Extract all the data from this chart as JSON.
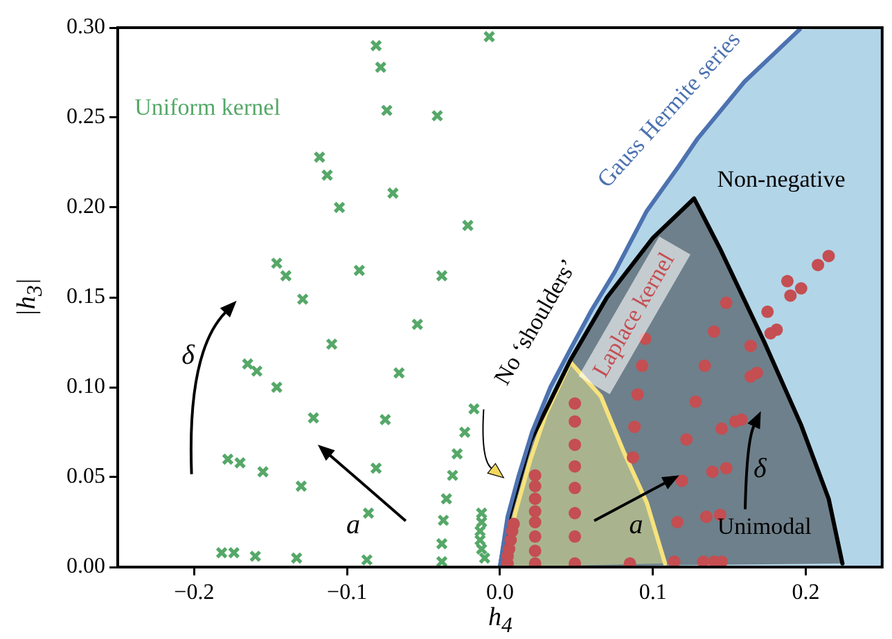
{
  "chart_data": {
    "type": "scatter",
    "xlabel": "h$_{4}$",
    "ylabel": "|h$_{3}$|",
    "xlim": [
      -0.25,
      0.25
    ],
    "ylim": [
      0,
      0.3
    ],
    "legend": false,
    "xticks": [
      {
        "value": -0.2,
        "label": "−0.2"
      },
      {
        "value": -0.1,
        "label": "−0.1"
      },
      {
        "value": 0,
        "label": "0.0"
      },
      {
        "value": 0.1,
        "label": "0.1"
      },
      {
        "value": 0.2,
        "label": "0.2"
      }
    ],
    "yticks": [
      {
        "value": 0,
        "label": "0.00"
      },
      {
        "value": 0.05,
        "label": "0.05"
      },
      {
        "value": 0.1,
        "label": "0.10"
      },
      {
        "value": 0.15,
        "label": "0.15"
      },
      {
        "value": 0.2,
        "label": "0.20"
      },
      {
        "value": 0.25,
        "label": "0.25"
      },
      {
        "value": 0.3,
        "label": "0.30"
      }
    ],
    "annotations": [
      "No ‘shoulders’",
      "a",
      "δ",
      "a",
      "δ",
      "Unimodal"
    ],
    "series": [
      {
        "name": "Gauss Hermite series",
        "type": "line",
        "marker": "none",
        "color": "#4c72b0",
        "x": [
          0,
          0.005,
          0.012,
          0.021,
          0.033,
          0.046,
          0.06,
          0.075,
          0.096,
          0.117,
          0.129,
          0.16,
          0.196
        ],
        "values": [
          0,
          0.028,
          0.05,
          0.075,
          0.1,
          0.121,
          0.143,
          0.164,
          0.198,
          0.223,
          0.238,
          0.27,
          0.299
        ]
      },
      {
        "name": "Non-negative",
        "type": "line",
        "marker": "none",
        "color": "#000000",
        "x": [
          0,
          0.005,
          0.02,
          0.046,
          0.07,
          0.1,
          0.127,
          0.144,
          0.173,
          0.197,
          0.215,
          0.224
        ],
        "values": [
          0,
          0.025,
          0.07,
          0.115,
          0.15,
          0.183,
          0.205,
          0.177,
          0.125,
          0.079,
          0.038,
          0.002
        ]
      },
      {
        "type": "line",
        "marker": "none",
        "color": "#f7e27c",
        "x": [
          0.002,
          0.01,
          0.02,
          0.03,
          0.046,
          0.066,
          0.081,
          0.096,
          0.108
        ],
        "values": [
          0,
          0.03,
          0.06,
          0.085,
          0.114,
          0.095,
          0.064,
          0.036,
          0.002
        ]
      },
      {
        "name": "Uniform kernel",
        "marker": "cross",
        "color": "#55a868",
        "x": [
          -0.081,
          -0.078,
          -0.074,
          -0.041,
          -0.007,
          -0.118,
          -0.113,
          -0.105,
          -0.07,
          -0.021,
          -0.146,
          -0.14,
          -0.129,
          -0.092,
          -0.038,
          -0.054,
          -0.11,
          -0.066,
          -0.165,
          -0.159,
          -0.146,
          -0.122,
          -0.075,
          -0.017,
          -0.023,
          -0.028,
          -0.031,
          -0.035,
          -0.037,
          -0.038,
          -0.038,
          -0.081,
          -0.178,
          -0.17,
          -0.155,
          -0.13,
          -0.086,
          -0.182,
          -0.174,
          -0.16,
          -0.133,
          -0.087,
          -0.012,
          -0.012,
          -0.013,
          -0.013,
          -0.012,
          -0.01
        ],
        "values": [
          0.29,
          0.278,
          0.254,
          0.251,
          0.295,
          0.228,
          0.218,
          0.2,
          0.208,
          0.19,
          0.169,
          0.162,
          0.149,
          0.165,
          0.162,
          0.135,
          0.124,
          0.108,
          0.113,
          0.109,
          0.1,
          0.083,
          0.082,
          0.088,
          0.075,
          0.063,
          0.051,
          0.038,
          0.026,
          0.013,
          0.003,
          0.055,
          0.06,
          0.058,
          0.053,
          0.045,
          0.03,
          0.008,
          0.008,
          0.006,
          0.005,
          0.004,
          0.03,
          0.025,
          0.02,
          0.015,
          0.01,
          0.005
        ]
      },
      {
        "name": "Laplace kernel",
        "marker": "circle",
        "color": "#c44e52",
        "x": [
          0.005,
          0.005,
          0.006,
          0.007,
          0.008,
          0.009,
          0.023,
          0.023,
          0.023,
          0.023,
          0.023,
          0.023,
          0.023,
          0.023,
          0.049,
          0.049,
          0.049,
          0.049,
          0.049,
          0.049,
          0.049,
          0.049,
          0.148,
          0.14,
          0.164,
          0.095,
          0.093,
          0.134,
          0.09,
          0.128,
          0.164,
          0.168,
          0.175,
          0.181,
          0.177,
          0.188,
          0.197,
          0.19,
          0.208,
          0.215,
          0.088,
          0.122,
          0.145,
          0.154,
          0.158,
          0.087,
          0.119,
          0.139,
          0.148,
          0.116,
          0.135,
          0.144,
          0.085,
          0.114,
          0.133,
          0.14,
          0.145
        ],
        "values": [
          0.002,
          0.006,
          0.01,
          0.015,
          0.02,
          0.024,
          0.051,
          0.045,
          0.038,
          0.031,
          0.025,
          0.017,
          0.009,
          0.002,
          0.091,
          0.081,
          0.068,
          0.056,
          0.044,
          0.03,
          0.017,
          0.002,
          0.147,
          0.131,
          0.123,
          0.127,
          0.112,
          0.112,
          0.096,
          0.092,
          0.106,
          0.108,
          0.142,
          0.132,
          0.13,
          0.159,
          0.155,
          0.151,
          0.168,
          0.173,
          0.078,
          0.071,
          0.077,
          0.081,
          0.082,
          0.061,
          0.048,
          0.053,
          0.055,
          0.025,
          0.028,
          0.029,
          0.002,
          0.003,
          0.003,
          0.003,
          0.003
        ]
      }
    ]
  }
}
